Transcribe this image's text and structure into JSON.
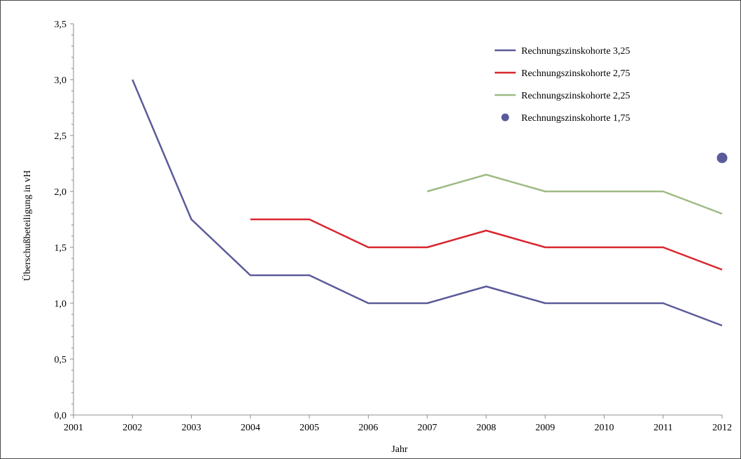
{
  "chart_data": {
    "type": "line",
    "title": "",
    "xlabel": "Jahr",
    "ylabel": "Überschußbeteiligung in vH",
    "x": [
      2001,
      2002,
      2003,
      2004,
      2005,
      2006,
      2007,
      2008,
      2009,
      2010,
      2011,
      2012
    ],
    "x_tick_labels": [
      "2001",
      "2002",
      "2003",
      "2004",
      "2005",
      "2006",
      "2007",
      "2008",
      "2009",
      "2010",
      "2011",
      "2012"
    ],
    "y_ticks": [
      0,
      0.5,
      1.0,
      1.5,
      2.0,
      2.5,
      3.0,
      3.5
    ],
    "y_tick_labels": [
      "0,0",
      "0,5",
      "1,0",
      "1,5",
      "2,0",
      "2,5",
      "3,0",
      "3,5"
    ],
    "xlim": [
      2001,
      2012
    ],
    "ylim": [
      0,
      3.5
    ],
    "grid": false,
    "legend_position": "top-right",
    "series": [
      {
        "name": "Rechnungszinskohorte 3,25",
        "marker": "line",
        "color": "#5b5a9a",
        "points": [
          [
            2002,
            3.0
          ],
          [
            2003,
            1.75
          ],
          [
            2004,
            1.25
          ],
          [
            2005,
            1.25
          ],
          [
            2006,
            1.0
          ],
          [
            2007,
            1.0
          ],
          [
            2008,
            1.15
          ],
          [
            2009,
            1.0
          ],
          [
            2010,
            1.0
          ],
          [
            2011,
            1.0
          ],
          [
            2012,
            0.8
          ]
        ]
      },
      {
        "name": "Rechnungszinskohorte 2,75",
        "marker": "line",
        "color": "#d9262e",
        "points": [
          [
            2004,
            1.75
          ],
          [
            2005,
            1.75
          ],
          [
            2006,
            1.5
          ],
          [
            2007,
            1.5
          ],
          [
            2008,
            1.65
          ],
          [
            2009,
            1.5
          ],
          [
            2010,
            1.5
          ],
          [
            2011,
            1.5
          ],
          [
            2012,
            1.3
          ]
        ]
      },
      {
        "name": "Rechnungszinskohorte 2,25",
        "marker": "line",
        "color": "#9dbb84",
        "points": [
          [
            2007,
            2.0
          ],
          [
            2008,
            2.15
          ],
          [
            2009,
            2.0
          ],
          [
            2010,
            2.0
          ],
          [
            2011,
            2.0
          ],
          [
            2012,
            1.8
          ]
        ]
      },
      {
        "name": "Rechnungszinskohorte 1,75",
        "marker": "dot",
        "color": "#5b5a9a",
        "points": [
          [
            2012,
            2.3
          ]
        ]
      }
    ]
  }
}
